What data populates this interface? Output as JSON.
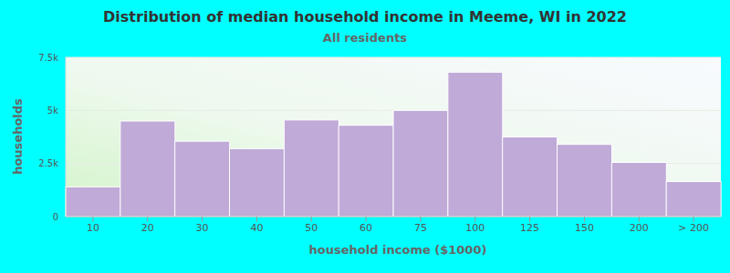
{
  "chart_data": {
    "type": "bar",
    "title": "Distribution of median household income in Meeme, WI in 2022",
    "subtitle": "All residents",
    "x_label": "household income ($1000)",
    "y_label": "households",
    "categories": [
      "10",
      "20",
      "30",
      "40",
      "50",
      "60",
      "75",
      "100",
      "125",
      "150",
      "200",
      "> 200"
    ],
    "values": [
      1400,
      4500,
      3550,
      3200,
      4550,
      4300,
      5000,
      6800,
      3750,
      3400,
      2550,
      1650
    ],
    "color": "#c0aad8",
    "ylim": [
      0,
      7500
    ],
    "yticks": [
      0,
      {
        "value": 2500,
        "label": "2.5k"
      },
      {
        "value": 5000,
        "label": "5k"
      },
      {
        "value": 7500,
        "label": "7.5k"
      }
    ],
    "grid": true
  }
}
